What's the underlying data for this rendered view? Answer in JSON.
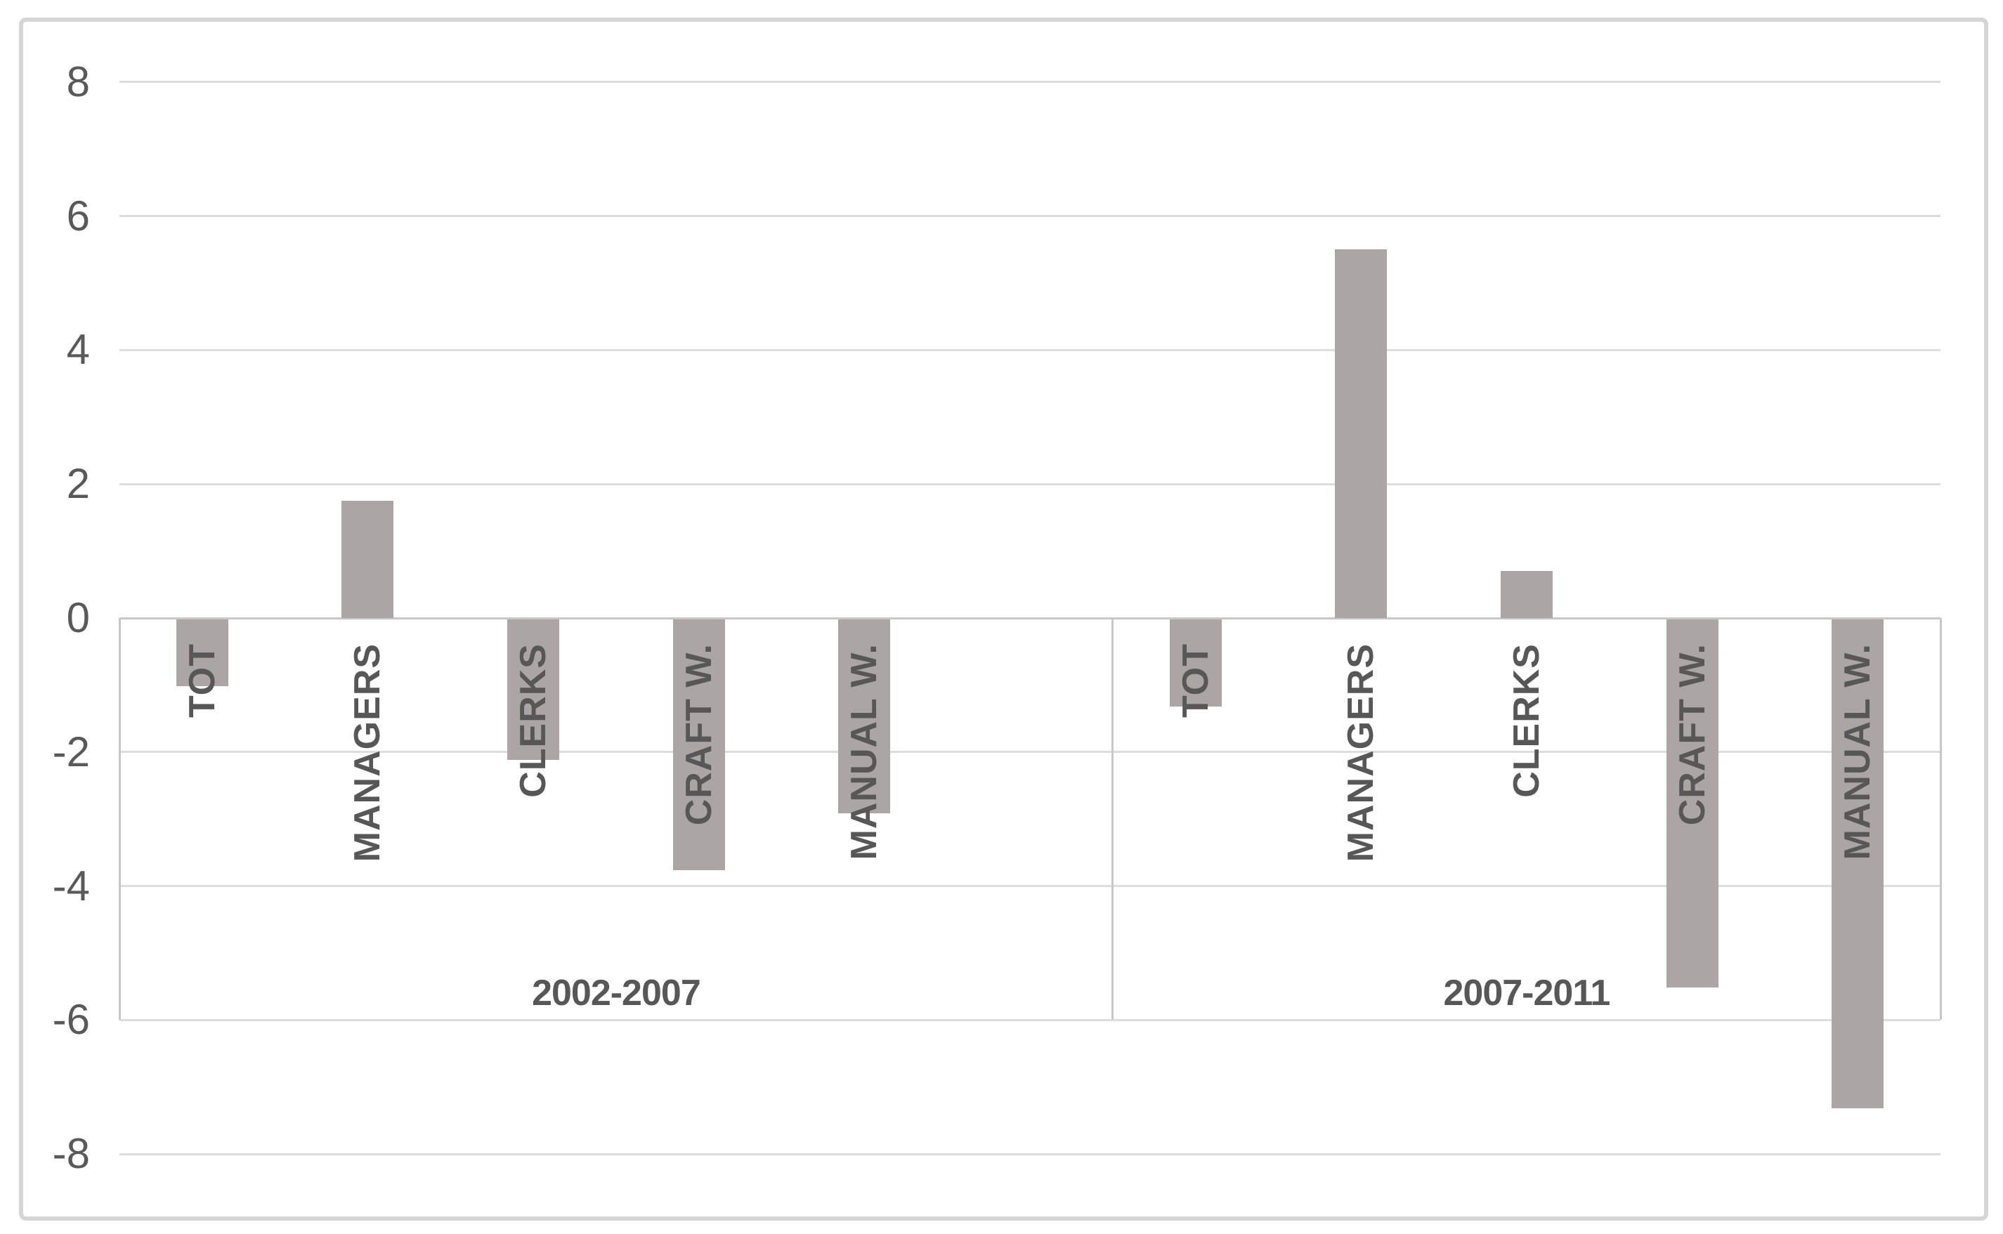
{
  "chart_data": {
    "type": "bar",
    "categories": [
      "TOT",
      "MANAGERS",
      "CLERKS",
      "CRAFT W.",
      "MANUAL W."
    ],
    "groups": [
      {
        "label": "2002-2007",
        "values": [
          -1.0,
          1.75,
          -2.1,
          -3.75,
          -2.9
        ]
      },
      {
        "label": "2007-2011",
        "values": [
          -1.3,
          5.5,
          0.7,
          -5.5,
          -7.3
        ]
      }
    ],
    "ylim": [
      -8,
      8
    ],
    "yticks": [
      8,
      6,
      4,
      2,
      0,
      -2,
      -4,
      -6,
      -8
    ],
    "xlabel": "",
    "ylabel": "",
    "title": "",
    "legend": "none",
    "grid": true,
    "colors": {
      "bar": "#aba6a4",
      "gridline": "#dddddd",
      "axis_line": "#c7c7c7",
      "separator": "#c7c7c7",
      "tick_text": "#595959",
      "category_text": "#575757",
      "border": "#d5d5d5",
      "background": "#ffffff"
    }
  }
}
